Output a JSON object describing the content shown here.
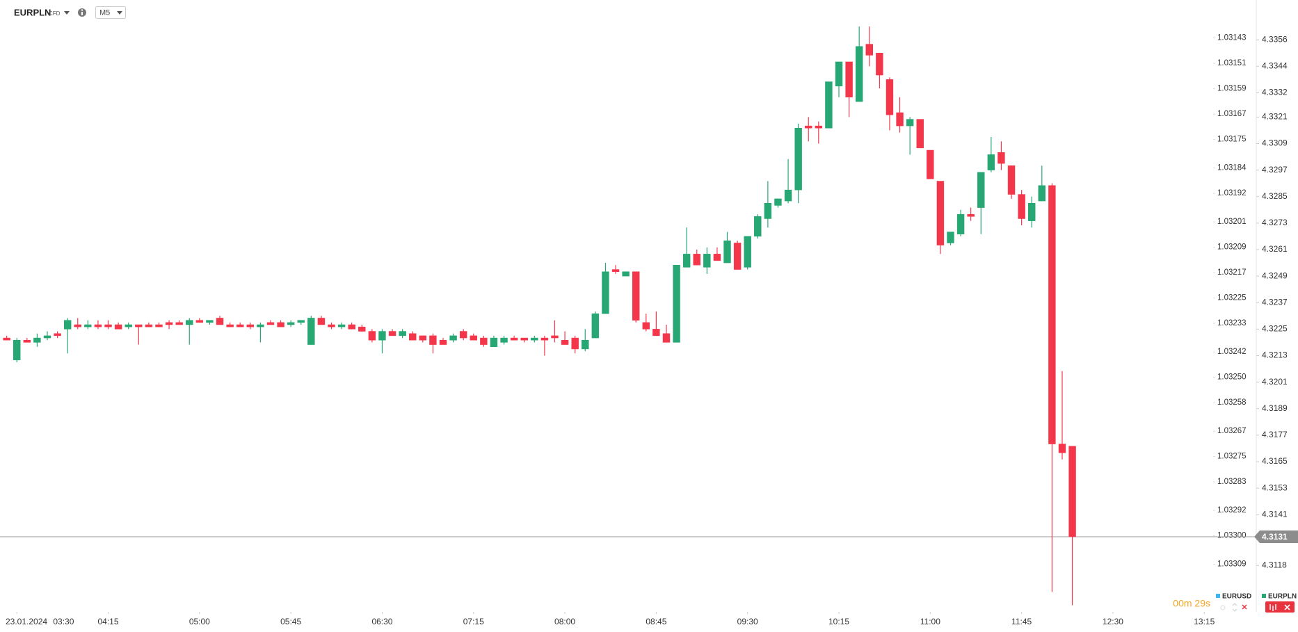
{
  "toolbar": {
    "symbol": "EURPLN",
    "instrument_type": "CFD",
    "timeframe": "M5"
  },
  "chart_data": {
    "type": "candlestick",
    "open": [
      4.3221,
      4.3211,
      4.322,
      4.3219,
      4.3221,
      4.3223,
      4.3225,
      4.3227,
      4.3226,
      4.3227,
      4.3227,
      4.3227,
      4.3226,
      4.3227,
      4.3227,
      4.3227,
      4.3228,
      4.3228,
      4.3227,
      4.3229,
      4.3228,
      4.323,
      4.3227,
      4.3227,
      4.3227,
      4.3226,
      4.3228,
      4.3228,
      4.3227,
      4.3228,
      4.3218,
      4.323,
      4.3227,
      4.3226,
      4.3227,
      4.3226,
      4.3224,
      4.322,
      4.3224,
      4.3222,
      4.3223,
      4.3222,
      4.3222,
      4.322,
      4.322,
      4.3224,
      4.3222,
      4.3221,
      4.3217,
      4.3219,
      4.3221,
      4.3221,
      4.322,
      4.3221,
      4.3222,
      4.322,
      4.3221,
      4.3216,
      4.3221,
      4.3232,
      4.3252,
      4.3249,
      4.3251,
      4.3228,
      4.3225,
      4.3223,
      4.3219,
      4.3253,
      4.3259,
      4.3253,
      4.3259,
      4.3255,
      4.3264,
      4.3253,
      4.3267,
      4.3275,
      4.3281,
      4.3283,
      4.3288,
      4.3317,
      4.3317,
      4.3316,
      4.3335,
      4.3346,
      4.3328,
      4.3354,
      4.335,
      4.3338,
      4.3323,
      4.3317,
      4.332,
      4.3306,
      4.3292,
      4.3264,
      4.3268,
      4.3277,
      4.328,
      4.3297,
      4.3305,
      4.3299,
      4.3286,
      4.3274,
      4.3283,
      4.329,
      4.3173,
      4.3172
    ],
    "high": [
      4.3222,
      4.3221,
      4.3221,
      4.3223,
      4.3224,
      4.3224,
      4.323,
      4.323,
      4.3229,
      4.3229,
      4.3229,
      4.3228,
      4.3228,
      4.3227,
      4.3228,
      4.3228,
      4.3229,
      4.3229,
      4.323,
      4.323,
      4.3229,
      4.3231,
      4.3228,
      4.3228,
      4.3228,
      4.3228,
      4.3229,
      4.3229,
      4.3229,
      4.3229,
      4.3231,
      4.3231,
      4.3228,
      4.3228,
      4.3228,
      4.3227,
      4.3225,
      4.3225,
      4.3225,
      4.3225,
      4.3224,
      4.3222,
      4.3223,
      4.3221,
      4.3223,
      4.3225,
      4.3223,
      4.3222,
      4.3222,
      4.3222,
      4.3222,
      4.3221,
      4.3222,
      4.3222,
      4.3229,
      4.3224,
      4.3222,
      4.3225,
      4.3233,
      4.3255,
      4.3254,
      4.3251,
      4.3251,
      4.3232,
      4.3233,
      4.3227,
      4.3254,
      4.3271,
      4.3261,
      4.3262,
      4.3262,
      4.3269,
      4.3265,
      4.3267,
      4.3277,
      4.3292,
      4.3284,
      4.3302,
      4.3318,
      4.3321,
      4.3319,
      4.3337,
      4.3346,
      4.3346,
      4.3362,
      4.3362,
      4.335,
      4.3339,
      4.333,
      4.3321,
      4.332,
      4.3306,
      4.3292,
      4.3269,
      4.3279,
      4.328,
      4.3296,
      4.3312,
      4.331,
      4.3299,
      4.3288,
      4.3285,
      4.3299,
      4.3291,
      4.3206,
      4.3172
    ],
    "low": [
      4.322,
      4.321,
      4.3219,
      4.3217,
      4.322,
      4.3221,
      4.3214,
      4.3225,
      4.3225,
      4.3225,
      4.3225,
      4.3225,
      4.3225,
      4.3218,
      4.3226,
      4.3226,
      4.3225,
      4.3227,
      4.3218,
      4.3228,
      4.3227,
      4.3227,
      4.3226,
      4.3226,
      4.3225,
      4.3219,
      4.3227,
      4.3226,
      4.3226,
      4.3227,
      4.3218,
      4.3227,
      4.3225,
      4.3225,
      4.3225,
      4.3224,
      4.3219,
      4.3214,
      4.3222,
      4.3221,
      4.322,
      4.3219,
      4.3214,
      4.3218,
      4.3219,
      4.322,
      4.322,
      4.3217,
      4.3217,
      4.3218,
      4.322,
      4.3219,
      4.3219,
      4.3213,
      4.3219,
      4.3218,
      4.3214,
      4.3215,
      4.3221,
      4.3232,
      4.325,
      4.3249,
      4.3228,
      4.3224,
      4.3222,
      4.3219,
      4.3219,
      4.3253,
      4.3254,
      4.325,
      4.3256,
      4.3255,
      4.3252,
      4.3252,
      4.3266,
      4.3271,
      4.328,
      4.3282,
      4.3282,
      4.331,
      4.3309,
      4.3316,
      4.333,
      4.3321,
      4.3328,
      4.3344,
      4.3334,
      4.3315,
      4.3314,
      4.3304,
      4.3307,
      4.3293,
      4.3259,
      4.3263,
      4.3267,
      4.3274,
      4.3268,
      4.3296,
      4.3297,
      4.3284,
      4.3272,
      4.3271,
      4.3283,
      4.3106,
      4.3166,
      4.31
    ],
    "close": [
      4.322,
      4.322,
      4.3219,
      4.3221,
      4.3222,
      4.3222,
      4.3229,
      4.3226,
      4.3227,
      4.3226,
      4.3226,
      4.3225,
      4.3227,
      4.3226,
      4.3226,
      4.3226,
      4.3227,
      4.3227,
      4.3229,
      4.3228,
      4.3229,
      4.3227,
      4.3226,
      4.3226,
      4.3226,
      4.3227,
      4.3227,
      4.3226,
      4.3228,
      4.3229,
      4.323,
      4.3227,
      4.3226,
      4.3227,
      4.3225,
      4.3224,
      4.322,
      4.3224,
      4.3222,
      4.3224,
      4.322,
      4.322,
      4.3218,
      4.3218,
      4.3222,
      4.3221,
      4.322,
      4.3218,
      4.3221,
      4.3221,
      4.322,
      4.322,
      4.3221,
      4.322,
      4.3221,
      4.3218,
      4.3216,
      4.322,
      4.3232,
      4.3251,
      4.3251,
      4.3251,
      4.3229,
      4.3225,
      4.3222,
      4.3219,
      4.3254,
      4.3259,
      4.3254,
      4.3259,
      4.3256,
      4.3265,
      4.3252,
      4.3267,
      4.3276,
      4.3282,
      4.3284,
      4.3288,
      4.3316,
      4.3316,
      4.3316,
      4.3337,
      4.3346,
      4.333,
      4.3353,
      4.3349,
      4.334,
      4.3322,
      4.3317,
      4.332,
      4.3307,
      4.3293,
      4.3263,
      4.3269,
      4.3277,
      4.3276,
      4.3296,
      4.3304,
      4.33,
      4.3286,
      4.3275,
      4.3282,
      4.329,
      4.3173,
      4.3169,
      4.3131
    ],
    "up_color": "#27a773",
    "down_color": "#f4364b",
    "xlim": [
      -0.66,
      118.6
    ],
    "xticks": [
      {
        "value": 1,
        "label": "03:30"
      },
      {
        "value": 10,
        "label": "04:15"
      },
      {
        "value": 19,
        "label": "05:00"
      },
      {
        "value": 28,
        "label": "05:45"
      },
      {
        "value": 37,
        "label": "06:30"
      },
      {
        "value": 46,
        "label": "07:15"
      },
      {
        "value": 55,
        "label": "08:00"
      },
      {
        "value": 64,
        "label": "08:45"
      },
      {
        "value": 73,
        "label": "09:30"
      },
      {
        "value": 82,
        "label": "10:15"
      },
      {
        "value": 91,
        "label": "11:00"
      },
      {
        "value": 100,
        "label": "11:45"
      },
      {
        "value": 109,
        "label": "12:30"
      },
      {
        "value": 118,
        "label": "13:15"
      }
    ],
    "x_date_label": "23.01.2024",
    "ylim": [
      4.3097,
      4.3374
    ],
    "yticks": [
      4.3356,
      4.3344,
      4.3332,
      4.3321,
      4.3309,
      4.3297,
      4.3285,
      4.3273,
      4.3261,
      4.3249,
      4.3237,
      4.3225,
      4.3213,
      4.3201,
      4.3189,
      4.3177,
      4.3165,
      4.3153,
      4.3141,
      4.3118
    ],
    "y2lim": [
      1.03324,
      1.03131
    ],
    "y2ticks": [
      1.03143,
      1.03151,
      1.03159,
      1.03167,
      1.03175,
      1.03184,
      1.03192,
      1.03201,
      1.03209,
      1.03217,
      1.03225,
      1.03233,
      1.03242,
      {
        "value": 1.0325,
        "label": "1.03250"
      },
      1.03258,
      1.03267,
      1.03275,
      1.03283,
      1.03292,
      {
        "value": 1.033,
        "label": "1.03300"
      },
      1.03309
    ],
    "current_price": 4.3131,
    "countdown": "00m 29s",
    "legend": [
      {
        "name": "EURUSD",
        "color": "#3fb6ef"
      },
      {
        "name": "EURPLN",
        "color": "#27a773"
      }
    ]
  }
}
